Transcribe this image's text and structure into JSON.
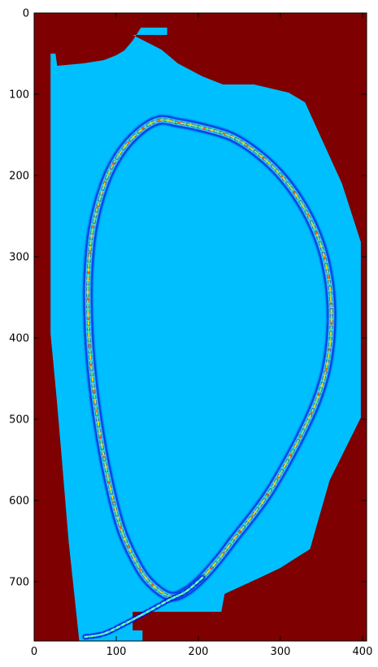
{
  "chart_data": {
    "type": "heatmap",
    "title": "",
    "xlabel": "",
    "ylabel": "",
    "xlim": [
      0,
      405
    ],
    "ylim": [
      773,
      0
    ],
    "xticks": [
      0,
      100,
      200,
      300,
      400
    ],
    "yticks": [
      0,
      100,
      200,
      300,
      400,
      500,
      600,
      700
    ],
    "grid": false,
    "colormap": "jet",
    "colors": {
      "background": "#7f0000",
      "interior": "#00bfff",
      "ring_low": "#0000d8",
      "ring_mid": "#2ce0ff",
      "ring_high": "#7fff7f",
      "ring_hot": "#ffd000",
      "ring_peak": "#ff5500"
    },
    "vessel_boundary": [
      [
        20,
        50
      ],
      [
        26,
        50
      ],
      [
        28,
        65
      ],
      [
        60,
        62
      ],
      [
        85,
        58
      ],
      [
        100,
        52
      ],
      [
        110,
        46
      ],
      [
        120,
        34
      ],
      [
        130,
        18
      ],
      [
        162,
        18
      ],
      [
        162,
        27
      ],
      [
        120,
        27
      ],
      [
        155,
        45
      ],
      [
        175,
        62
      ],
      [
        205,
        78
      ],
      [
        230,
        88
      ],
      [
        268,
        88
      ],
      [
        310,
        98
      ],
      [
        330,
        110
      ],
      [
        348,
        150
      ],
      [
        375,
        210
      ],
      [
        398,
        282
      ],
      [
        398,
        498
      ],
      [
        360,
        575
      ],
      [
        336,
        660
      ],
      [
        320,
        670
      ],
      [
        300,
        683
      ],
      [
        275,
        695
      ],
      [
        232,
        715
      ],
      [
        228,
        737
      ],
      [
        120,
        737
      ],
      [
        120,
        760
      ],
      [
        132,
        760
      ],
      [
        132,
        773
      ],
      [
        55,
        773
      ],
      [
        42,
        650
      ],
      [
        33,
        540
      ],
      [
        27,
        470
      ],
      [
        20,
        395
      ]
    ],
    "plasma_ring": [
      [
        152,
        132
      ],
      [
        175,
        135
      ],
      [
        200,
        140
      ],
      [
        240,
        152
      ],
      [
        275,
        175
      ],
      [
        305,
        205
      ],
      [
        330,
        242
      ],
      [
        348,
        282
      ],
      [
        358,
        322
      ],
      [
        362,
        362
      ],
      [
        361,
        402
      ],
      [
        355,
        442
      ],
      [
        343,
        480
      ],
      [
        325,
        520
      ],
      [
        305,
        558
      ],
      [
        285,
        592
      ],
      [
        265,
        620
      ],
      [
        243,
        648
      ],
      [
        225,
        672
      ],
      [
        205,
        695
      ],
      [
        185,
        712
      ],
      [
        165,
        718
      ],
      [
        140,
        700
      ],
      [
        122,
        672
      ],
      [
        105,
        632
      ],
      [
        90,
        572
      ],
      [
        78,
        505
      ],
      [
        70,
        440
      ],
      [
        66,
        380
      ],
      [
        66,
        320
      ],
      [
        72,
        262
      ],
      [
        87,
        207
      ],
      [
        105,
        172
      ],
      [
        128,
        146
      ]
    ],
    "divertor_leg": [
      [
        205,
        695
      ],
      [
        185,
        712
      ],
      [
        165,
        722
      ],
      [
        140,
        736
      ],
      [
        110,
        752
      ],
      [
        85,
        764
      ],
      [
        62,
        768
      ]
    ]
  }
}
